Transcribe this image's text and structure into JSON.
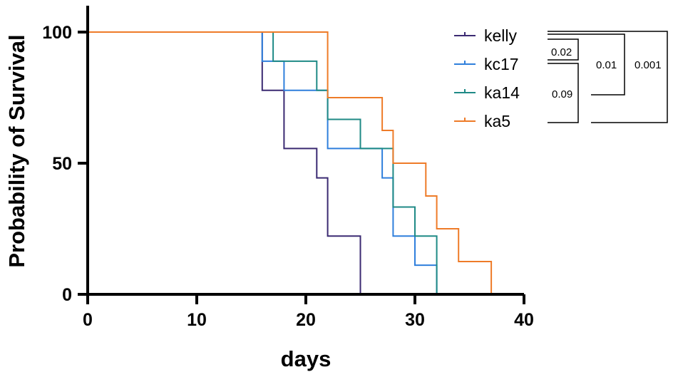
{
  "chart_data": {
    "type": "line",
    "step": true,
    "title": "",
    "xlabel": "days",
    "ylabel": "Probability of Survival",
    "xlim": [
      0,
      40
    ],
    "ylim": [
      0,
      100
    ],
    "xticks": [
      0,
      10,
      20,
      30,
      40
    ],
    "yticks": [
      0,
      50,
      100
    ],
    "grid": false,
    "legend_position": "top-right",
    "series": [
      {
        "name": "kelly",
        "color": "#3b2a72",
        "x": [
          0,
          16,
          18,
          21,
          22,
          25
        ],
        "y": [
          100,
          77.8,
          55.6,
          44.4,
          22.2,
          0
        ]
      },
      {
        "name": "kc17",
        "color": "#2f7fdc",
        "x": [
          0,
          16,
          18,
          22,
          27,
          28,
          30,
          32
        ],
        "y": [
          100,
          88.9,
          77.8,
          55.6,
          44.4,
          22.2,
          11.1,
          0
        ]
      },
      {
        "name": "ka14",
        "color": "#1f8a86",
        "x": [
          0,
          17,
          21,
          22,
          25,
          28,
          30,
          32
        ],
        "y": [
          100,
          88.9,
          77.8,
          66.7,
          55.6,
          33.3,
          22.2,
          0
        ]
      },
      {
        "name": "ka5",
        "color": "#ee7b28",
        "x": [
          0,
          22,
          27,
          28,
          31,
          32,
          34,
          37
        ],
        "y": [
          100,
          75,
          62.5,
          50,
          37.5,
          25,
          12.5,
          0
        ]
      }
    ],
    "annotations": [
      {
        "label": "0.02",
        "groups": [
          "kelly",
          "kc17"
        ]
      },
      {
        "label": "0.09",
        "groups": [
          "kc17",
          "ka5"
        ]
      },
      {
        "label": "0.01",
        "groups": [
          "kelly",
          "ka14"
        ]
      },
      {
        "label": "0.001",
        "groups": [
          "kelly",
          "ka5"
        ]
      }
    ]
  }
}
